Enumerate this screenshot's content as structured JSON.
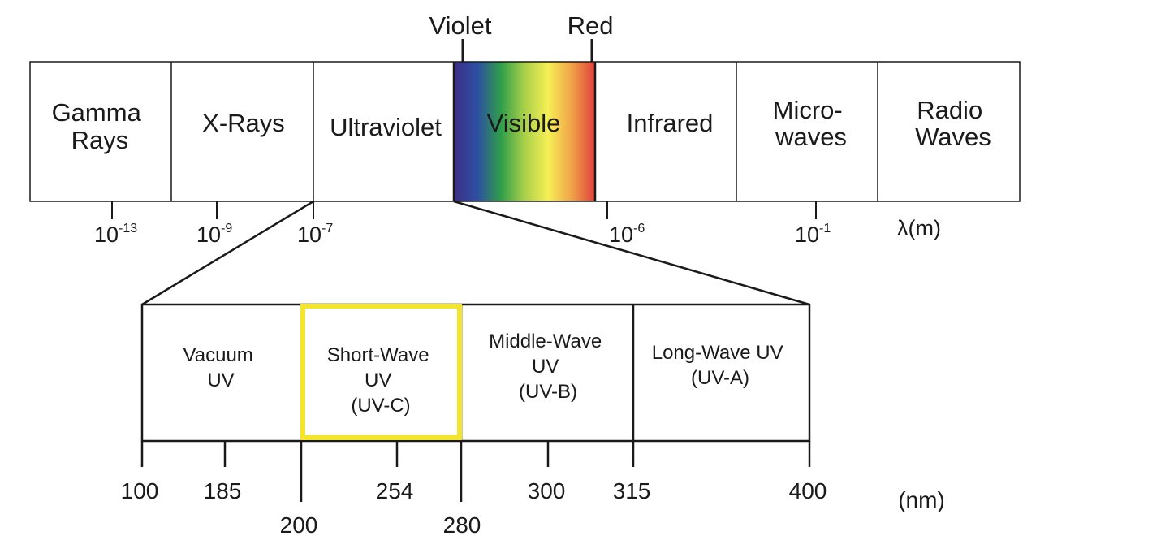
{
  "spectrum": {
    "violet_label": "Violet",
    "red_label": "Red",
    "bands": [
      {
        "lines": [
          "Gamma",
          "Rays"
        ]
      },
      {
        "lines": [
          "X-Rays"
        ]
      },
      {
        "lines": [
          "Ultraviolet"
        ]
      },
      {
        "lines": [
          "Visible"
        ]
      },
      {
        "lines": [
          "Infrared"
        ]
      },
      {
        "lines": [
          "Micro-",
          "waves"
        ]
      },
      {
        "lines": [
          "Radio",
          "Waves"
        ]
      }
    ],
    "ticks": [
      {
        "base": "10",
        "exp": "-13"
      },
      {
        "base": "10",
        "exp": "-9"
      },
      {
        "base": "10",
        "exp": "-7"
      },
      {
        "base": "10",
        "exp": "-6"
      },
      {
        "base": "10",
        "exp": "-1"
      }
    ],
    "unit": "λ(m)",
    "visible_gradient": [
      "#3b2f85",
      "#2e4fa3",
      "#2f9e4a",
      "#a9d04a",
      "#f6ef55",
      "#f0a349",
      "#e0403a"
    ]
  },
  "uv_detail": {
    "bands": [
      {
        "lines": [
          "Vacuum",
          "UV"
        ]
      },
      {
        "lines": [
          "Short-Wave",
          "UV",
          "(UV-C)"
        ]
      },
      {
        "lines": [
          "Middle-Wave",
          "UV",
          "(UV-B)"
        ]
      },
      {
        "lines": [
          "Long-Wave UV",
          "(UV-A)"
        ]
      }
    ],
    "highlight_color": "#f2e52b",
    "ticks": [
      "100",
      "185",
      "200",
      "254",
      "280",
      "300",
      "315",
      "400"
    ],
    "unit": "(nm)"
  }
}
